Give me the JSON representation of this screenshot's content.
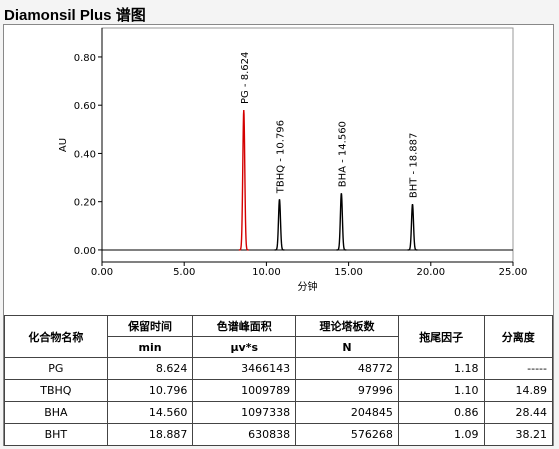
{
  "header": {
    "title": "Diamonsil Plus 谱图"
  },
  "chart_data": {
    "type": "chromatogram",
    "x_label": "分钟",
    "y_label": "AU",
    "xlim": [
      0,
      25
    ],
    "ylim": [
      -0.05,
      0.92
    ],
    "xticks": [
      {
        "value": 0,
        "label": "0.00"
      },
      {
        "value": 5,
        "label": "5.00"
      },
      {
        "value": 10,
        "label": "10.00"
      },
      {
        "value": 15,
        "label": "15.00"
      },
      {
        "value": 20,
        "label": "20.00"
      },
      {
        "value": 25,
        "label": "25.00"
      }
    ],
    "yticks": [
      {
        "value": 0,
        "label": "0.00"
      },
      {
        "value": 0.2,
        "label": "0.20"
      },
      {
        "value": 0.4,
        "label": "0.40"
      },
      {
        "value": 0.6,
        "label": "0.60"
      },
      {
        "value": 0.8,
        "label": "0.80"
      }
    ],
    "peaks": [
      {
        "label": "PG - 8.624",
        "x": 8.624,
        "height": 0.58,
        "color": "#d40000"
      },
      {
        "label": "TBHQ - 10.796",
        "x": 10.796,
        "height": 0.21,
        "color": "#000000"
      },
      {
        "label": "BHA - 14.560",
        "x": 14.56,
        "height": 0.235,
        "color": "#000000"
      },
      {
        "label": "BHT - 18.887",
        "x": 18.887,
        "height": 0.19,
        "color": "#000000"
      }
    ]
  },
  "table": {
    "header": [
      [
        "化合物名称",
        ""
      ],
      [
        "保留时间",
        "min"
      ],
      [
        "色谱峰面积",
        "μv*s"
      ],
      [
        "理论塔板数",
        "N"
      ],
      [
        "拖尾因子",
        ""
      ],
      [
        "分离度",
        ""
      ]
    ],
    "rows": [
      [
        "PG",
        "8.624",
        "3466143",
        "48772",
        "1.18",
        "-----"
      ],
      [
        "TBHQ",
        "10.796",
        "1009789",
        "97996",
        "1.10",
        "14.89"
      ],
      [
        "BHA",
        "14.560",
        "1097338",
        "204845",
        "0.86",
        "28.44"
      ],
      [
        "BHT",
        "18.887",
        "630838",
        "576268",
        "1.09",
        "38.21"
      ]
    ]
  }
}
